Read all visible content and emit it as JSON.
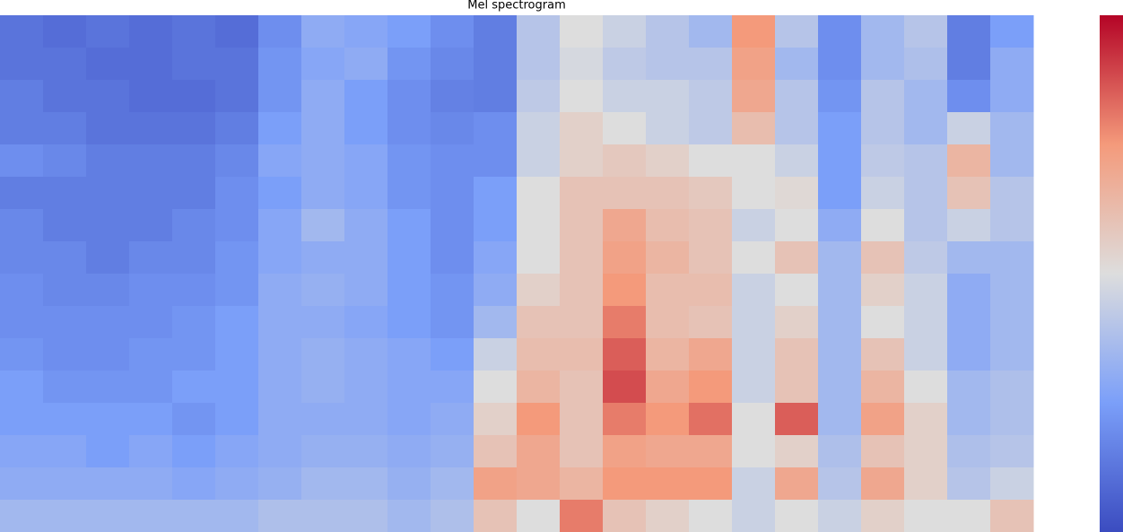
{
  "chart_data": {
    "type": "heatmap",
    "title": "Mel spectrogram",
    "colormap": "coolwarm",
    "clim": [
      0,
      1
    ],
    "values": [
      [
        0.12,
        0.1,
        0.12,
        0.1,
        0.12,
        0.1,
        0.2,
        0.3,
        0.28,
        0.25,
        0.2,
        0.15,
        0.4,
        0.5,
        0.45,
        0.4,
        0.35,
        0.75,
        0.4,
        0.2,
        0.35,
        0.4,
        0.15,
        0.25
      ],
      [
        0.12,
        0.12,
        0.1,
        0.1,
        0.12,
        0.12,
        0.22,
        0.28,
        0.3,
        0.22,
        0.18,
        0.15,
        0.4,
        0.48,
        0.42,
        0.4,
        0.4,
        0.72,
        0.35,
        0.2,
        0.35,
        0.38,
        0.15,
        0.3
      ],
      [
        0.15,
        0.12,
        0.12,
        0.1,
        0.1,
        0.12,
        0.22,
        0.3,
        0.25,
        0.2,
        0.16,
        0.15,
        0.42,
        0.5,
        0.45,
        0.45,
        0.42,
        0.7,
        0.4,
        0.22,
        0.4,
        0.35,
        0.2,
        0.3
      ],
      [
        0.15,
        0.15,
        0.12,
        0.12,
        0.12,
        0.15,
        0.25,
        0.3,
        0.25,
        0.2,
        0.18,
        0.2,
        0.45,
        0.55,
        0.5,
        0.45,
        0.42,
        0.62,
        0.4,
        0.25,
        0.4,
        0.35,
        0.45,
        0.35
      ],
      [
        0.2,
        0.18,
        0.15,
        0.15,
        0.15,
        0.18,
        0.28,
        0.3,
        0.28,
        0.22,
        0.2,
        0.2,
        0.45,
        0.55,
        0.58,
        0.55,
        0.5,
        0.5,
        0.45,
        0.25,
        0.42,
        0.4,
        0.65,
        0.35
      ],
      [
        0.15,
        0.15,
        0.15,
        0.15,
        0.15,
        0.2,
        0.25,
        0.3,
        0.28,
        0.22,
        0.2,
        0.25,
        0.5,
        0.6,
        0.6,
        0.6,
        0.58,
        0.5,
        0.52,
        0.25,
        0.45,
        0.4,
        0.6,
        0.4
      ],
      [
        0.18,
        0.15,
        0.15,
        0.15,
        0.18,
        0.2,
        0.28,
        0.35,
        0.3,
        0.25,
        0.2,
        0.25,
        0.5,
        0.6,
        0.7,
        0.62,
        0.6,
        0.45,
        0.5,
        0.3,
        0.5,
        0.4,
        0.45,
        0.4
      ],
      [
        0.18,
        0.18,
        0.15,
        0.18,
        0.18,
        0.22,
        0.28,
        0.3,
        0.3,
        0.25,
        0.2,
        0.28,
        0.5,
        0.6,
        0.72,
        0.65,
        0.6,
        0.5,
        0.6,
        0.35,
        0.6,
        0.42,
        0.35,
        0.35
      ],
      [
        0.2,
        0.18,
        0.18,
        0.2,
        0.2,
        0.22,
        0.3,
        0.32,
        0.3,
        0.25,
        0.22,
        0.3,
        0.55,
        0.6,
        0.75,
        0.62,
        0.62,
        0.45,
        0.5,
        0.35,
        0.55,
        0.45,
        0.3,
        0.35
      ],
      [
        0.2,
        0.2,
        0.2,
        0.2,
        0.22,
        0.25,
        0.3,
        0.3,
        0.28,
        0.25,
        0.22,
        0.35,
        0.6,
        0.6,
        0.8,
        0.62,
        0.6,
        0.45,
        0.55,
        0.35,
        0.5,
        0.45,
        0.3,
        0.35
      ],
      [
        0.22,
        0.2,
        0.2,
        0.22,
        0.22,
        0.25,
        0.3,
        0.32,
        0.3,
        0.28,
        0.25,
        0.45,
        0.62,
        0.62,
        0.85,
        0.65,
        0.7,
        0.45,
        0.6,
        0.35,
        0.6,
        0.45,
        0.3,
        0.35
      ],
      [
        0.25,
        0.22,
        0.22,
        0.22,
        0.25,
        0.25,
        0.3,
        0.32,
        0.3,
        0.28,
        0.28,
        0.5,
        0.65,
        0.6,
        0.88,
        0.7,
        0.75,
        0.45,
        0.6,
        0.35,
        0.65,
        0.5,
        0.35,
        0.38
      ],
      [
        0.25,
        0.25,
        0.25,
        0.25,
        0.22,
        0.25,
        0.3,
        0.3,
        0.3,
        0.28,
        0.3,
        0.55,
        0.75,
        0.6,
        0.8,
        0.75,
        0.82,
        0.5,
        0.85,
        0.35,
        0.72,
        0.55,
        0.35,
        0.38
      ],
      [
        0.28,
        0.28,
        0.25,
        0.28,
        0.25,
        0.28,
        0.3,
        0.32,
        0.32,
        0.3,
        0.32,
        0.6,
        0.7,
        0.6,
        0.72,
        0.7,
        0.7,
        0.5,
        0.55,
        0.38,
        0.6,
        0.55,
        0.38,
        0.4
      ],
      [
        0.3,
        0.3,
        0.3,
        0.3,
        0.28,
        0.3,
        0.32,
        0.35,
        0.35,
        0.32,
        0.35,
        0.72,
        0.7,
        0.65,
        0.75,
        0.75,
        0.75,
        0.45,
        0.7,
        0.4,
        0.7,
        0.55,
        0.4,
        0.45
      ],
      [
        0.35,
        0.35,
        0.35,
        0.35,
        0.35,
        0.35,
        0.38,
        0.38,
        0.38,
        0.35,
        0.38,
        0.6,
        0.5,
        0.8,
        0.6,
        0.55,
        0.5,
        0.45,
        0.5,
        0.45,
        0.55,
        0.5,
        0.5,
        0.6
      ]
    ]
  }
}
